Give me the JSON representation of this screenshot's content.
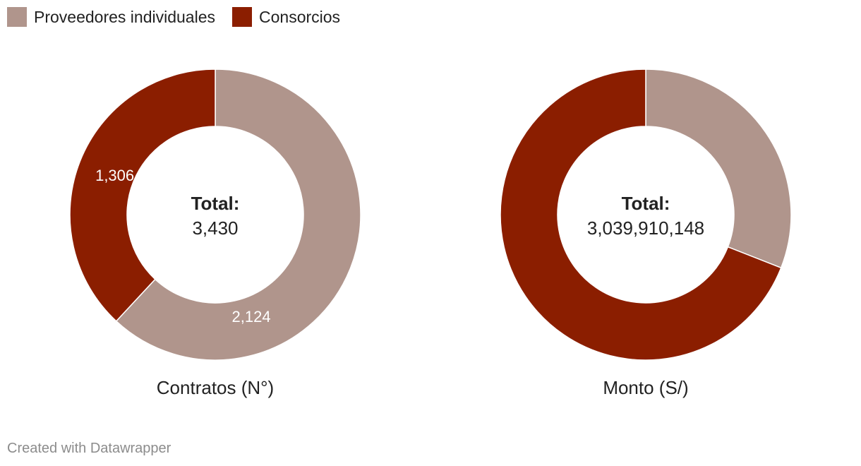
{
  "legend": [
    {
      "label": "Proveedores individuales",
      "color": "#b0958c"
    },
    {
      "label": "Consorcios",
      "color": "#8b1e00"
    }
  ],
  "chart_data": [
    {
      "type": "pie",
      "subtype": "donut",
      "title": "Contratos (N°)",
      "categories": [
        "Proveedores individuales",
        "Consorcios"
      ],
      "values": [
        2124,
        1306
      ],
      "value_labels": [
        "2,124",
        "1,306"
      ],
      "colors": [
        "#b0958c",
        "#8b1e00"
      ],
      "center_title": "Total:",
      "center_value": "3,430"
    },
    {
      "type": "pie",
      "subtype": "donut",
      "title": "Monto (S/)",
      "categories": [
        "Proveedores individuales",
        "Consorcios"
      ],
      "values": [
        941000000,
        2098910148
      ],
      "value_labels": [
        "",
        ""
      ],
      "colors": [
        "#b0958c",
        "#8b1e00"
      ],
      "center_title": "Total:",
      "center_value": "3,039,910,148"
    }
  ],
  "footer": "Created with Datawrapper"
}
